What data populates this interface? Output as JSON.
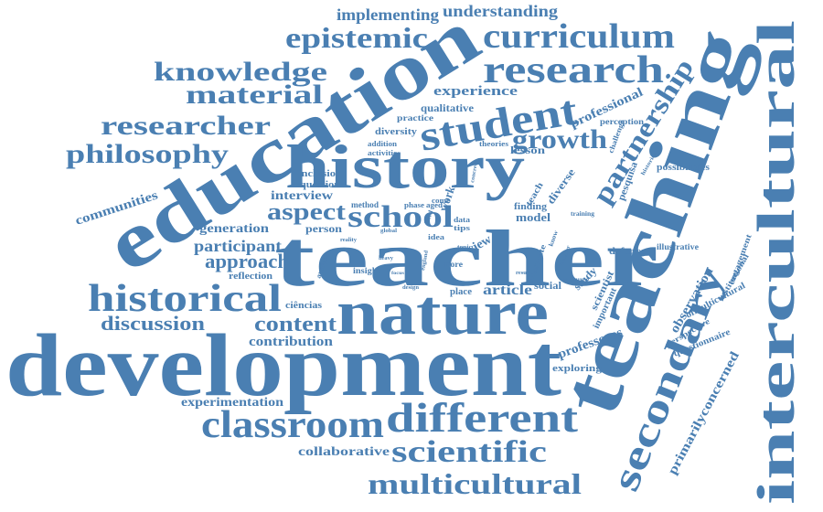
{
  "color": "#4a7fb2",
  "words": {
    "development": "development",
    "teacher": "teacher",
    "teaching": "teaching",
    "education": "education",
    "history": "history",
    "nature": "nature",
    "intercultural": "intercultural",
    "secondary": "secondary",
    "different": "different",
    "classroom": "classroom",
    "historical": "historical",
    "student": "student",
    "research": "research",
    "curriculum": "curriculum",
    "scientific": "scientific",
    "multicultural": "multicultural",
    "school": "school",
    "knowledge": "knowledge",
    "material": "material",
    "researcher": "researcher",
    "philosophy": "philosophy",
    "epistemic": "epistemic",
    "growth": "growth",
    "partnership": "partnership",
    "implementing": "implementing",
    "understanding": "understanding",
    "aspect": "aspect",
    "content": "content",
    "discussion": "discussion",
    "approach": "approach",
    "participant": "participant",
    "experience": "experience",
    "professional": "professional",
    "communities": "communities",
    "generation": "generation",
    "interview": "interview",
    "contribution": "contribution",
    "experimentation": "experimentation",
    "collaborative": "collaborative",
    "article": "article",
    "primarilyconcerned": "primarilyconcerned",
    "professores": "professores",
    "observation": "observation",
    "possibilities": "possibilities",
    "illustrative": "illustrative",
    "defence": "defence",
    "exploring": "exploring",
    "questionnaire": "questionnaire",
    "ofmulticultural": "ofmulticultural",
    "perspective": "perspective",
    "institutional": "institutional",
    "engagement": "engagement",
    "pesquisa": "pesquisa",
    "challenge": "challenge",
    "perception": "perception",
    "qualitative": "qualitative",
    "diversity": "diversity",
    "practice": "practice",
    "addition": "addition",
    "activities": "activities",
    "inclusion": "inclusion",
    "question": "question",
    "lesson": "lesson",
    "theories": "theories",
    "diverse": "diverse",
    "finding": "finding",
    "model": "model",
    "method": "method",
    "phase": "phase",
    "aged": "aged",
    "person": "person",
    "reflection": "reflection",
    "analysis": "analysis",
    "insight": "insight",
    "ciencias": "ciências",
    "place": "place",
    "social": "social",
    "study": "study",
    "scientist": "scientist",
    "important": "important",
    "view": "view",
    "work": "work",
    "illustrate": "illustrate",
    "teach": "teach",
    "more": "more",
    "idea": "idea",
    "tips": "tips",
    "data": "data",
    "come": "come",
    "resource": "resource",
    "training": "training",
    "design": "design",
    "england": "england",
    "reality": "reality",
    "global": "global",
    "field": "field",
    "topic": "topic",
    "heavy": "heavy",
    "focus": "focus",
    "result": "result",
    "know": "know",
    "broader": "broader",
    "concrete": "concrete",
    "histories": "histories"
  }
}
